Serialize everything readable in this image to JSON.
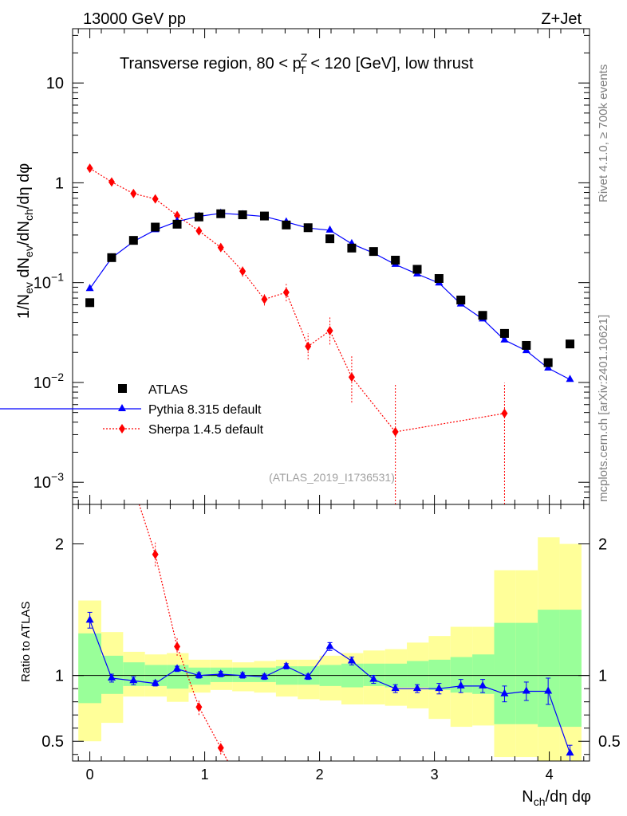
{
  "header": {
    "left": "13000 GeV pp",
    "right": "Z+Jet",
    "side_top": "Rivet 4.1.0, ≥ 700k events",
    "side_bottom": "mcplots.cern.ch [arXiv:2401.10621]"
  },
  "chart_data": {
    "type": "line",
    "title": "Transverse region, 80 < p_T^Z < 120 [GeV], low thrust",
    "analysis_label": "(ATLAS_2019_I1736531)",
    "xlabel": "N_ch/dη dφ",
    "ylabel": "1/N_ev dN_ev/dN_ch/dη dφ",
    "ratio_ylabel": "Ratio to ATLAS",
    "xlim": [
      -0.15,
      4.35
    ],
    "ylim": [
      0.0006,
      35
    ],
    "yscale": "log",
    "ratio_ylim": [
      0.35,
      2.3
    ],
    "x_ticks": [
      "0",
      "1",
      "2",
      "3",
      "4"
    ],
    "y_ticks": [
      "10^-3",
      "10^-2",
      "10^-1",
      "1",
      "10"
    ],
    "ratio_ticks": [
      "0.5",
      "1",
      "2"
    ],
    "legend": [
      "ATLAS",
      "Pythia 8.315 default",
      "Sherpa 1.4.5 default"
    ],
    "legend_position": "lower-left",
    "x": [
      0,
      0.19,
      0.38,
      0.57,
      0.76,
      0.95,
      1.14,
      1.33,
      1.52,
      1.71,
      1.9,
      2.09,
      2.28,
      2.47,
      2.66,
      2.85,
      3.04,
      3.23,
      3.42,
      3.61,
      3.8,
      3.99,
      4.18
    ],
    "band_edges": [
      -0.1,
      0.1,
      0.29,
      0.48,
      0.67,
      0.86,
      1.05,
      1.24,
      1.43,
      1.62,
      1.81,
      2.0,
      2.19,
      2.38,
      2.57,
      2.76,
      2.95,
      3.14,
      3.33,
      3.52,
      3.71,
      3.9,
      4.09,
      4.28
    ],
    "series": [
      {
        "name": "ATLAS",
        "values": [
          0.063,
          0.178,
          0.265,
          0.36,
          0.385,
          0.455,
          0.49,
          0.478,
          0.465,
          0.378,
          0.355,
          0.275,
          0.222,
          0.205,
          0.168,
          0.136,
          0.11,
          0.067,
          0.047,
          0.031,
          0.0235,
          0.0158,
          0.0243
        ],
        "band_inner_lo": [
          0.79,
          0.86,
          0.92,
          0.92,
          0.9,
          0.93,
          0.95,
          0.95,
          0.95,
          0.93,
          0.93,
          0.92,
          0.91,
          0.92,
          0.91,
          0.91,
          0.89,
          0.87,
          0.86,
          0.63,
          0.63,
          0.61,
          0.61
        ],
        "band_inner_hi": [
          1.32,
          1.15,
          1.1,
          1.08,
          1.08,
          1.06,
          1.06,
          1.06,
          1.06,
          1.07,
          1.07,
          1.08,
          1.09,
          1.09,
          1.09,
          1.11,
          1.12,
          1.14,
          1.16,
          1.4,
          1.4,
          1.5,
          1.5
        ],
        "band_outer_lo": [
          0.5,
          0.64,
          0.84,
          0.84,
          0.8,
          0.87,
          0.89,
          0.88,
          0.87,
          0.84,
          0.82,
          0.81,
          0.78,
          0.78,
          0.77,
          0.75,
          0.67,
          0.61,
          0.62,
          0.38,
          0.38,
          0.35,
          0.35
        ],
        "band_outer_hi": [
          1.57,
          1.33,
          1.18,
          1.16,
          1.17,
          1.12,
          1.12,
          1.1,
          1.11,
          1.12,
          1.12,
          1.15,
          1.17,
          1.19,
          1.2,
          1.25,
          1.3,
          1.37,
          1.37,
          1.8,
          1.8,
          2.05,
          2.0
        ]
      },
      {
        "name": "Pythia 8.315 default",
        "color": "#0000ff",
        "values": [
          0.087,
          0.177,
          0.258,
          0.338,
          0.41,
          0.461,
          0.495,
          0.48,
          0.46,
          0.405,
          0.352,
          0.335,
          0.245,
          0.198,
          0.152,
          0.122,
          0.099,
          0.061,
          0.0432,
          0.0266,
          0.0208,
          0.0139,
          0.0107
        ],
        "ratio": [
          1.42,
          0.98,
          0.96,
          0.94,
          1.05,
          1.0,
          1.01,
          1.0,
          0.99,
          1.07,
          0.99,
          1.22,
          1.11,
          0.97,
          0.9,
          0.9,
          0.9,
          0.92,
          0.92,
          0.86,
          0.88,
          0.88,
          0.41
        ],
        "ratio_err": [
          0.06,
          0.03,
          0.03,
          0.02,
          0.02,
          0.02,
          0.02,
          0.02,
          0.02,
          0.02,
          0.02,
          0.03,
          0.03,
          0.03,
          0.03,
          0.03,
          0.04,
          0.05,
          0.05,
          0.06,
          0.07,
          0.1,
          0.06
        ]
      },
      {
        "name": "Sherpa 1.4.5 default",
        "color": "#ff0000",
        "values": [
          1.4,
          1.02,
          0.78,
          0.69,
          0.47,
          0.33,
          0.225,
          0.13,
          0.068,
          0.08,
          0.023,
          0.033,
          0.0113,
          null,
          0.0032,
          null,
          null,
          null,
          null,
          0.0049,
          null,
          null,
          null
        ],
        "err_lo": [
          0.04,
          0.03,
          0.03,
          0.03,
          0.03,
          0.02,
          0.02,
          0.015,
          0.009,
          0.015,
          0.006,
          0.009,
          0.005,
          null,
          0.0029,
          null,
          null,
          null,
          null,
          0.0048,
          null,
          null,
          null
        ],
        "err_hi": [
          0.04,
          0.03,
          0.03,
          0.03,
          0.03,
          0.02,
          0.02,
          0.015,
          0.009,
          0.017,
          0.008,
          0.012,
          0.007,
          null,
          0.0065,
          null,
          null,
          null,
          null,
          0.005,
          null,
          null,
          null
        ],
        "ratio_x": [
          0.57,
          0.76,
          0.95,
          1.14
        ],
        "ratio": [
          1.92,
          1.22,
          0.76,
          0.45
        ],
        "ratio_err": [
          0.09,
          0.07,
          0.06,
          0.05
        ]
      }
    ]
  }
}
